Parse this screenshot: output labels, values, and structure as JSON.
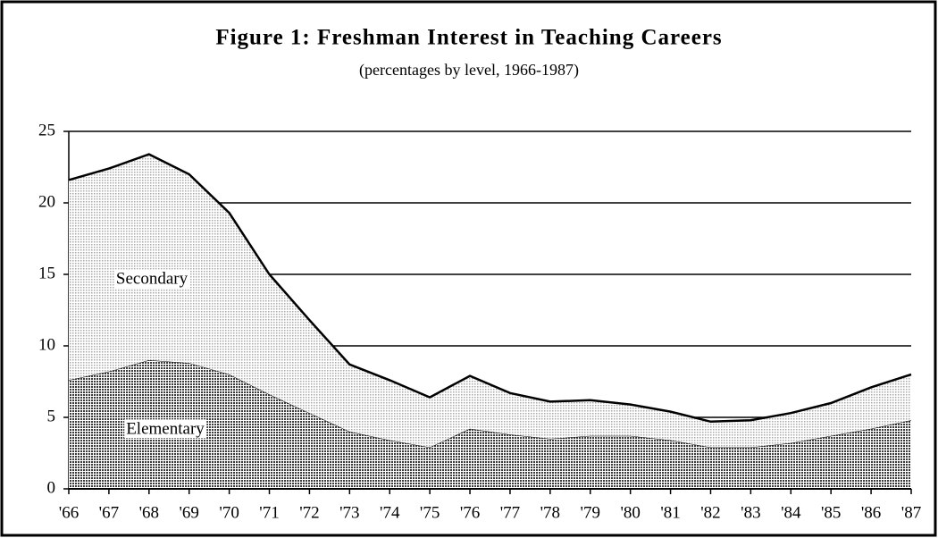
{
  "chart_data": {
    "type": "stacked_area",
    "title": "Figure 1: Freshman Interest in Teaching Careers",
    "subtitle": "(percentages by level, 1966-1987)",
    "categories": [
      "'66",
      "'67",
      "'68",
      "'69",
      "'70",
      "'71",
      "'72",
      "'73",
      "'74",
      "'75",
      "'76",
      "'77",
      "'78",
      "'79",
      "'80",
      "'81",
      "'82",
      "'83",
      "'84",
      "'85",
      "'86",
      "'87"
    ],
    "series": [
      {
        "name": "Elementary",
        "color": "#3a3a3a",
        "values": [
          7.6,
          8.2,
          9.0,
          8.8,
          8.0,
          6.6,
          5.3,
          4.0,
          3.4,
          2.9,
          4.2,
          3.8,
          3.5,
          3.7,
          3.7,
          3.4,
          2.9,
          2.9,
          3.2,
          3.7,
          4.2,
          4.8
        ]
      },
      {
        "name": "Secondary",
        "color": "#a8a8a8",
        "values": [
          14.0,
          14.2,
          14.4,
          13.2,
          11.3,
          8.4,
          6.5,
          4.7,
          4.2,
          3.5,
          3.7,
          2.9,
          2.6,
          2.5,
          2.2,
          2.0,
          1.8,
          1.9,
          2.1,
          2.3,
          2.9,
          3.2
        ]
      }
    ],
    "ylim": [
      0,
      25
    ],
    "yticks": [
      0,
      5,
      10,
      15,
      20,
      25
    ],
    "grid": true
  }
}
